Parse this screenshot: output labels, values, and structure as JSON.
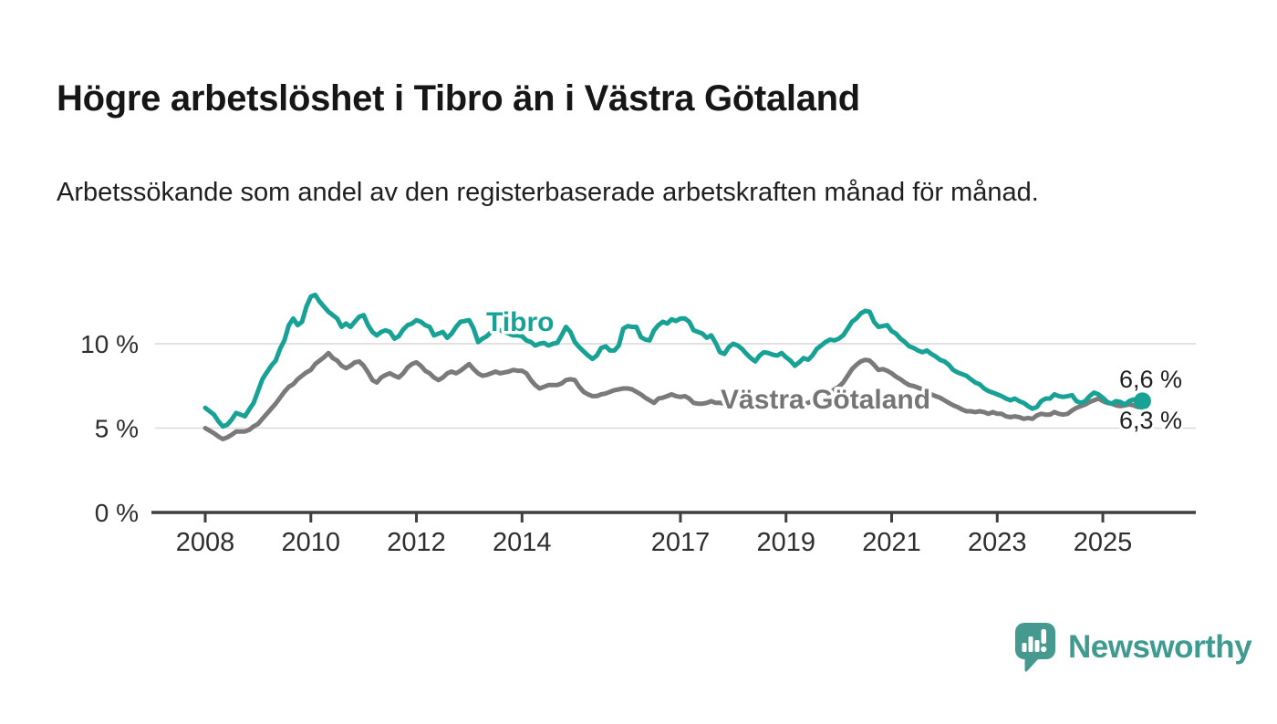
{
  "header": {
    "title": "Högre arbetslöshet i Tibro än i Västra Götaland",
    "subtitle": "Arbetssökande som andel av den registerbaserade arbetskraften månad för månad."
  },
  "footer": {
    "brand": "Newsworthy",
    "brand_color": "#3f9a90",
    "logo_icon": "newsworthy-speech-bubble-bar-chart-icon",
    "logo_color": "#45998f"
  },
  "chart_data": {
    "type": "line",
    "title": "Högre arbetslöshet i Tibro än i Västra Götaland",
    "subtitle": "Arbetssökande som andel av den registerbaserade arbetskraften månad för månad.",
    "x_unit": "month",
    "x_start": "2008-01",
    "x_end": "2025-10",
    "ylim": [
      0,
      13.5
    ],
    "grid": "horizontal",
    "legend": "inline-labels",
    "axis_color": "#3f3f3f",
    "gridline_color": "#d9d9d9",
    "tick_label_color": "#2e2e2e",
    "yticks": [
      {
        "value": 0,
        "label": "0 %"
      },
      {
        "value": 5,
        "label": "5 %"
      },
      {
        "value": 10,
        "label": "10 %"
      }
    ],
    "xticks": [
      {
        "value": 2008,
        "label": "2008"
      },
      {
        "value": 2010,
        "label": "2010"
      },
      {
        "value": 2012,
        "label": "2012"
      },
      {
        "value": 2014,
        "label": "2014"
      },
      {
        "value": 2017,
        "label": "2017"
      },
      {
        "value": 2019,
        "label": "2019"
      },
      {
        "value": 2021,
        "label": "2021"
      },
      {
        "value": 2023,
        "label": "2023"
      },
      {
        "value": 2025,
        "label": "2025"
      }
    ],
    "series": [
      {
        "name": "Tibro",
        "color": "#17a295",
        "label_color": "#17a295",
        "end_label": "6,6 %",
        "end_value": 6.6,
        "values": [
          6.2,
          6.0,
          5.8,
          5.4,
          5.1,
          5.2,
          5.5,
          5.9,
          5.8,
          5.7,
          6.1,
          6.5,
          7.2,
          7.9,
          8.3,
          8.7,
          9.0,
          9.7,
          10.2,
          11.1,
          11.5,
          11.1,
          11.3,
          12.2,
          12.8,
          12.9,
          12.5,
          12.2,
          11.9,
          11.7,
          11.5,
          11.0,
          11.2,
          11.0,
          11.3,
          11.6,
          11.7,
          11.1,
          10.7,
          10.5,
          10.7,
          10.8,
          10.7,
          10.3,
          10.45,
          10.85,
          11.1,
          11.2,
          11.4,
          11.3,
          11.1,
          11.0,
          10.5,
          10.6,
          10.7,
          10.35,
          10.6,
          11.0,
          11.3,
          11.35,
          11.4,
          10.9,
          10.1,
          10.3,
          10.45,
          10.7,
          10.85,
          10.8,
          10.7,
          10.6,
          10.5,
          10.5,
          10.45,
          10.2,
          10.1,
          9.9,
          10.0,
          10.05,
          9.9,
          10.0,
          10.05,
          10.5,
          11.0,
          10.7,
          10.1,
          9.8,
          9.55,
          9.3,
          9.1,
          9.3,
          9.75,
          9.85,
          9.6,
          9.6,
          9.9,
          10.9,
          11.05,
          11.0,
          11.0,
          10.4,
          10.25,
          10.2,
          10.8,
          11.1,
          11.3,
          11.2,
          11.45,
          11.35,
          11.5,
          11.5,
          11.3,
          10.8,
          10.7,
          10.6,
          10.35,
          10.5,
          10.05,
          9.5,
          9.4,
          9.8,
          10.0,
          9.9,
          9.7,
          9.4,
          9.15,
          8.95,
          9.3,
          9.5,
          9.45,
          9.35,
          9.3,
          9.45,
          9.2,
          9.0,
          8.7,
          8.9,
          9.15,
          9.05,
          9.3,
          9.7,
          9.9,
          10.1,
          10.25,
          10.2,
          10.3,
          10.5,
          10.9,
          11.3,
          11.5,
          11.8,
          11.95,
          11.9,
          11.3,
          11.0,
          11.05,
          11.1,
          10.75,
          10.6,
          10.3,
          10.1,
          9.85,
          9.75,
          9.6,
          9.5,
          9.6,
          9.4,
          9.25,
          9.05,
          8.95,
          8.75,
          8.45,
          8.3,
          8.2,
          8.1,
          7.9,
          7.7,
          7.6,
          7.35,
          7.2,
          7.1,
          7.0,
          6.9,
          6.75,
          6.65,
          6.75,
          6.6,
          6.5,
          6.3,
          6.15,
          6.25,
          6.6,
          6.75,
          6.75,
          7.0,
          6.9,
          6.85,
          6.9,
          6.95,
          6.6,
          6.5,
          6.6,
          6.9,
          7.1,
          7.0,
          6.8,
          6.55,
          6.45,
          6.6,
          6.55,
          6.4,
          6.6,
          6.7,
          6.5,
          6.6
        ]
      },
      {
        "name": "Västra Götaland",
        "color": "#7a7a7a",
        "label_color": "#757575",
        "end_label": "6,3 %",
        "end_value": 6.3,
        "values": [
          5.0,
          4.85,
          4.7,
          4.5,
          4.35,
          4.45,
          4.6,
          4.8,
          4.8,
          4.8,
          4.9,
          5.1,
          5.25,
          5.55,
          5.85,
          6.15,
          6.45,
          6.8,
          7.15,
          7.45,
          7.6,
          7.9,
          8.1,
          8.3,
          8.45,
          8.8,
          9.0,
          9.2,
          9.45,
          9.15,
          9.0,
          8.7,
          8.55,
          8.7,
          8.9,
          8.95,
          8.7,
          8.3,
          7.85,
          7.7,
          8.0,
          8.15,
          8.25,
          8.1,
          8.0,
          8.25,
          8.6,
          8.8,
          8.9,
          8.7,
          8.4,
          8.25,
          8.0,
          7.85,
          8.0,
          8.25,
          8.35,
          8.25,
          8.4,
          8.6,
          8.8,
          8.5,
          8.25,
          8.1,
          8.15,
          8.25,
          8.35,
          8.25,
          8.3,
          8.35,
          8.45,
          8.4,
          8.4,
          8.25,
          7.85,
          7.55,
          7.35,
          7.45,
          7.55,
          7.55,
          7.55,
          7.65,
          7.85,
          7.9,
          7.85,
          7.45,
          7.15,
          7.0,
          6.9,
          6.9,
          7.0,
          7.05,
          7.15,
          7.25,
          7.3,
          7.35,
          7.35,
          7.3,
          7.15,
          7.0,
          6.8,
          6.65,
          6.5,
          6.75,
          6.8,
          6.9,
          7.0,
          6.9,
          6.85,
          6.9,
          6.75,
          6.5,
          6.45,
          6.45,
          6.5,
          6.6,
          6.5,
          6.5,
          6.45,
          6.4,
          6.45,
          6.5,
          6.4,
          6.35,
          6.3,
          6.3,
          6.35,
          6.3,
          6.25,
          6.3,
          6.35,
          6.4,
          6.35,
          6.3,
          6.35,
          6.4,
          6.45,
          6.5,
          6.6,
          6.7,
          6.8,
          6.9,
          7.1,
          7.3,
          7.45,
          7.7,
          8.1,
          8.5,
          8.75,
          8.95,
          9.05,
          9.0,
          8.75,
          8.45,
          8.5,
          8.4,
          8.25,
          8.05,
          7.9,
          7.7,
          7.55,
          7.5,
          7.4,
          7.3,
          7.1,
          7.0,
          6.9,
          6.8,
          6.65,
          6.5,
          6.35,
          6.25,
          6.1,
          6.0,
          6.0,
          5.95,
          6.0,
          5.95,
          5.85,
          5.95,
          5.85,
          5.85,
          5.7,
          5.65,
          5.7,
          5.65,
          5.55,
          5.6,
          5.55,
          5.75,
          5.85,
          5.8,
          5.8,
          5.95,
          5.85,
          5.8,
          5.85,
          6.05,
          6.2,
          6.3,
          6.4,
          6.55,
          6.65,
          6.75,
          6.6,
          6.5,
          6.45,
          6.35,
          6.3,
          6.35,
          6.4,
          6.35,
          6.25,
          6.3
        ]
      }
    ]
  }
}
